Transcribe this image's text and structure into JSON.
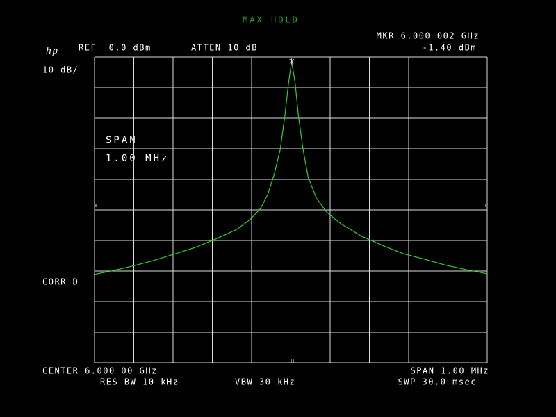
{
  "chart_data": {
    "type": "line",
    "title": "MAX HOLD",
    "brand": "hp",
    "ref_level": "REF  0.0 dBm",
    "attenuation": "ATTEN 10 dB",
    "scale": "10 dB/",
    "corrected": "CORR'D",
    "span_note": [
      "SPAN",
      "1.00 MHz"
    ],
    "center": "CENTER 6.000 00 GHz",
    "span": "SPAN 1.00 MHz",
    "res_bw": "RES BW 10 kHz",
    "vbw": "VBW 30 kHz",
    "sweep": "SWP 30.0 msec",
    "marker": {
      "label": "MKR 6.000 002 GHz",
      "x": 6000.002,
      "value_label": "-1.40 dBm",
      "y": -1.4
    },
    "x": [
      5999.5,
      5999.542,
      5999.596,
      5999.649,
      5999.702,
      5999.756,
      5999.809,
      5999.862,
      5999.896,
      5999.923,
      5999.941,
      5999.958,
      5999.973,
      5999.985,
      5999.994,
      6000.002,
      6000.011,
      6000.019,
      6000.031,
      6000.044,
      6000.065,
      6000.091,
      6000.127,
      6000.18,
      6000.233,
      6000.286,
      6000.339,
      6000.392,
      6000.445,
      6000.5
    ],
    "series": [
      {
        "name": "trace",
        "color": "#33cc33",
        "values": [
          -71.1,
          -70,
          -68.4,
          -66.6,
          -64.5,
          -62.3,
          -59.5,
          -56.4,
          -53.2,
          -49.5,
          -45,
          -38.2,
          -30.2,
          -18.9,
          -8.6,
          -1.4,
          -8.6,
          -18.9,
          -30.2,
          -39.3,
          -46.1,
          -50.7,
          -54.5,
          -58.6,
          -61.6,
          -64.3,
          -66.1,
          -68,
          -69.5,
          -70.9
        ]
      }
    ],
    "xlim": [
      5999.5,
      6000.5
    ],
    "xticks": [
      5999.5,
      5999.6,
      5999.7,
      5999.8,
      5999.9,
      6000,
      6000.1,
      6000.2,
      6000.3,
      6000.4,
      6000.5
    ],
    "ylim": [
      -100,
      0
    ],
    "yticks": [
      -100,
      -90,
      -80,
      -70,
      -60,
      -50,
      -40,
      -30,
      -20,
      -10,
      0
    ],
    "grid": true
  }
}
